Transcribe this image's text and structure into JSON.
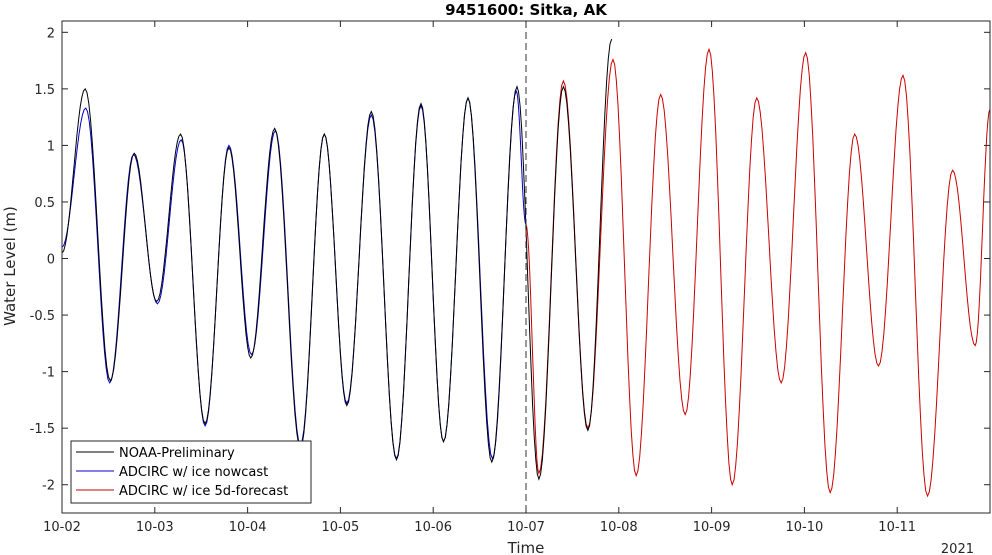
{
  "chart_data": {
    "type": "line",
    "title": "9451600: Sitka, AK",
    "xlabel": "Time",
    "ylabel": "Water Level (m)",
    "year_label": "2021",
    "x_ticks": [
      "10-02",
      "10-03",
      "10-04",
      "10-05",
      "10-06",
      "10-07",
      "10-08",
      "10-09",
      "10-10",
      "10-11"
    ],
    "xlim": [
      "2021-10-02 00:00",
      "2021-10-12 00:00"
    ],
    "ylim": [
      -2.25,
      2.1
    ],
    "y_ticks": [
      -2,
      -1.5,
      -1,
      -0.5,
      0,
      0.5,
      1,
      1.5,
      2
    ],
    "nowcast_forecast_boundary": "2021-10-07 00:00",
    "legend": {
      "placement": "bottom-left",
      "entries": [
        "NOAA-Preliminary",
        "ADCIRC w/ ice nowcast",
        "ADCIRC w/ ice 5d-forecast"
      ]
    },
    "colors": {
      "observed": "#000000",
      "nowcast": "#0000cc",
      "forecast": "#cc0000"
    },
    "series": [
      {
        "name": "NOAA-Preliminary",
        "extrema": [
          [
            "2021-10-02 00:00",
            0.05
          ],
          [
            "2021-10-02 06:00",
            1.5
          ],
          [
            "2021-10-02 12:30",
            -1.08
          ],
          [
            "2021-10-02 18:40",
            0.93
          ],
          [
            "2021-10-03 00:30",
            -0.38
          ],
          [
            "2021-10-03 06:40",
            1.1
          ],
          [
            "2021-10-03 13:00",
            -1.46
          ],
          [
            "2021-10-03 19:10",
            0.98
          ],
          [
            "2021-10-04 00:50",
            -0.88
          ],
          [
            "2021-10-04 07:00",
            1.15
          ],
          [
            "2021-10-04 13:40",
            -1.68
          ],
          [
            "2021-10-04 19:50",
            1.1
          ],
          [
            "2021-10-05 01:40",
            -1.3
          ],
          [
            "2021-10-05 08:00",
            1.3
          ],
          [
            "2021-10-05 14:30",
            -1.78
          ],
          [
            "2021-10-05 20:50",
            1.37
          ],
          [
            "2021-10-06 02:40",
            -1.62
          ],
          [
            "2021-10-06 09:00",
            1.42
          ],
          [
            "2021-10-06 15:10",
            -1.8
          ],
          [
            "2021-10-06 21:40",
            1.52
          ],
          [
            "2021-10-07 03:20",
            -1.95
          ],
          [
            "2021-10-07 09:40",
            1.52
          ],
          [
            "2021-10-07 16:00",
            -1.52
          ],
          [
            "2021-10-07 22:10",
            1.94
          ]
        ]
      },
      {
        "name": "ADCIRC w/ ice nowcast",
        "extrema": [
          [
            "2021-10-02 00:00",
            0.1
          ],
          [
            "2021-10-02 06:10",
            1.33
          ],
          [
            "2021-10-02 12:20",
            -1.1
          ],
          [
            "2021-10-02 18:30",
            0.92
          ],
          [
            "2021-10-03 00:40",
            -0.4
          ],
          [
            "2021-10-03 06:50",
            1.05
          ],
          [
            "2021-10-03 13:00",
            -1.48
          ],
          [
            "2021-10-03 19:10",
            1.0
          ],
          [
            "2021-10-04 01:00",
            -0.85
          ],
          [
            "2021-10-04 07:10",
            1.13
          ],
          [
            "2021-10-04 13:40",
            -1.65
          ],
          [
            "2021-10-04 19:50",
            1.1
          ],
          [
            "2021-10-05 01:40",
            -1.28
          ],
          [
            "2021-10-05 08:00",
            1.27
          ],
          [
            "2021-10-05 14:30",
            -1.77
          ],
          [
            "2021-10-05 20:50",
            1.35
          ],
          [
            "2021-10-06 02:40",
            -1.62
          ],
          [
            "2021-10-06 09:00",
            1.42
          ],
          [
            "2021-10-06 15:20",
            -1.77
          ],
          [
            "2021-10-06 21:30",
            1.48
          ],
          [
            "2021-10-07 00:00",
            0.3
          ]
        ]
      },
      {
        "name": "ADCIRC w/ ice 5d-forecast",
        "extrema": [
          [
            "2021-10-07 00:00",
            0.3
          ],
          [
            "2021-10-07 03:20",
            -1.9
          ],
          [
            "2021-10-07 09:40",
            1.57
          ],
          [
            "2021-10-07 16:00",
            -1.5
          ],
          [
            "2021-10-07 22:30",
            1.76
          ],
          [
            "2021-10-08 04:30",
            -1.92
          ],
          [
            "2021-10-08 10:50",
            1.45
          ],
          [
            "2021-10-08 17:10",
            -1.38
          ],
          [
            "2021-10-08 23:20",
            1.85
          ],
          [
            "2021-10-09 05:20",
            -2.0
          ],
          [
            "2021-10-09 11:40",
            1.42
          ],
          [
            "2021-10-09 18:00",
            -1.1
          ],
          [
            "2021-10-10 00:20",
            1.82
          ],
          [
            "2021-10-10 06:40",
            -2.07
          ],
          [
            "2021-10-10 13:00",
            1.1
          ],
          [
            "2021-10-10 19:10",
            -0.95
          ],
          [
            "2021-10-11 01:30",
            1.62
          ],
          [
            "2021-10-11 07:50",
            -2.1
          ],
          [
            "2021-10-11 14:20",
            0.78
          ],
          [
            "2021-10-11 20:10",
            -0.77
          ],
          [
            "2021-10-12 00:00",
            1.32
          ]
        ]
      }
    ]
  }
}
